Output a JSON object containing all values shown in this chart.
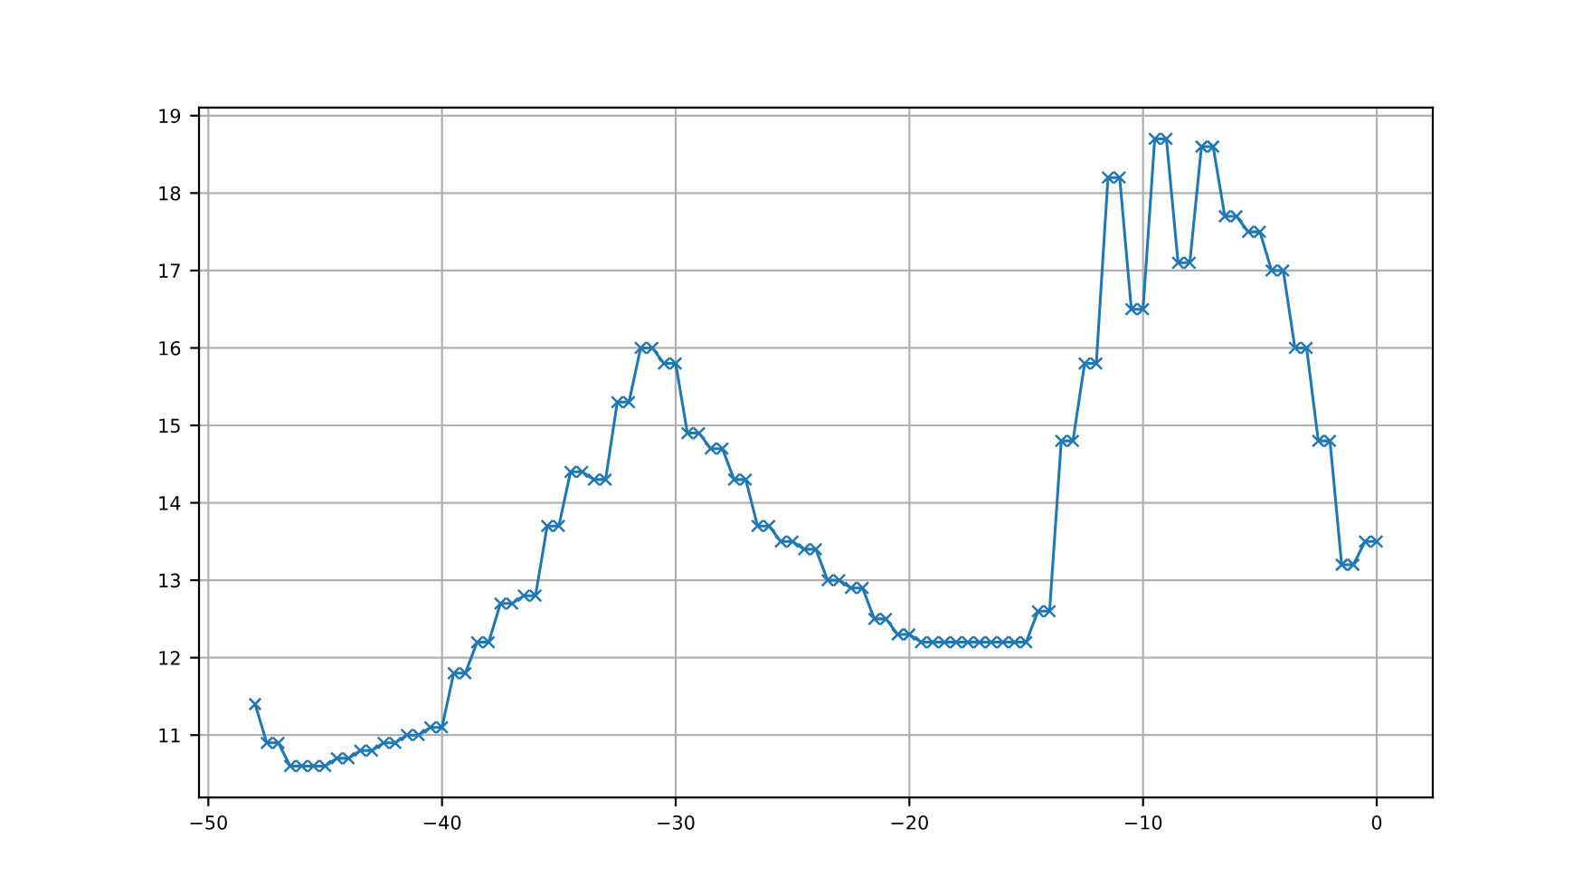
{
  "chart_data": {
    "type": "line",
    "x": [
      -48,
      -47.5,
      -47,
      -46.5,
      -46,
      -45.5,
      -45,
      -44.5,
      -44,
      -43.5,
      -43,
      -42.5,
      -42,
      -41.5,
      -41,
      -40.5,
      -40,
      -39.5,
      -39,
      -38.5,
      -38,
      -37.5,
      -37,
      -36.5,
      -36,
      -35.5,
      -35,
      -34.5,
      -34,
      -33.5,
      -33,
      -32.5,
      -32,
      -31.5,
      -31,
      -30.5,
      -30,
      -29.5,
      -29,
      -28.5,
      -28,
      -27.5,
      -27,
      -26.5,
      -26,
      -25.5,
      -25,
      -24.5,
      -24,
      -23.5,
      -23,
      -22.5,
      -22,
      -21.5,
      -21,
      -20.5,
      -20,
      -19.5,
      -19,
      -18.5,
      -18,
      -17.5,
      -17,
      -16.5,
      -16,
      -15.5,
      -15,
      -14.5,
      -14,
      -13.5,
      -13,
      -12.5,
      -12,
      -11.5,
      -11,
      -10.5,
      -10,
      -9.5,
      -9,
      -8.5,
      -8,
      -7.5,
      -7,
      -6.5,
      -6,
      -5.5,
      -5,
      -4.5,
      -4,
      -3.5,
      -3,
      -2.5,
      -2,
      -1.5,
      -1,
      -0.5,
      0
    ],
    "series": [
      {
        "color": "#1f77b4",
        "values": [
          11.4,
          10.9,
          10.9,
          10.6,
          10.6,
          10.6,
          10.6,
          10.7,
          10.7,
          10.8,
          10.8,
          10.9,
          10.9,
          11.0,
          11.0,
          11.1,
          11.1,
          11.8,
          11.8,
          12.2,
          12.2,
          12.7,
          12.7,
          12.8,
          12.8,
          13.7,
          13.7,
          14.4,
          14.4,
          14.3,
          14.3,
          15.3,
          15.3,
          16.0,
          16.0,
          15.8,
          15.8,
          14.9,
          14.9,
          14.7,
          14.7,
          14.3,
          14.3,
          13.7,
          13.7,
          13.5,
          13.5,
          13.4,
          13.4,
          13.0,
          13.0,
          12.9,
          12.9,
          12.5,
          12.5,
          12.3,
          12.3,
          12.2,
          12.2,
          12.2,
          12.2,
          12.2,
          12.2,
          12.2,
          12.2,
          12.2,
          12.2,
          12.6,
          12.6,
          14.8,
          14.8,
          15.8,
          15.8,
          18.2,
          18.2,
          16.5,
          16.5,
          18.7,
          18.7,
          17.1,
          17.1,
          18.6,
          18.6,
          17.7,
          17.7,
          17.5,
          17.5,
          17.0,
          17.0,
          16.0,
          16.0,
          14.8,
          14.8,
          13.2,
          13.2,
          13.5,
          13.5
        ]
      }
    ],
    "xlim": [
      -50.4,
      2.4
    ],
    "ylim": [
      10.195,
      19.105
    ],
    "xticks": [
      {
        "value": -50,
        "label": "−50"
      },
      {
        "value": -40,
        "label": "−40"
      },
      {
        "value": -30,
        "label": "−30"
      },
      {
        "value": -20,
        "label": "−20"
      },
      {
        "value": -10,
        "label": "−10"
      },
      0
    ],
    "yticks": [
      11,
      12,
      13,
      14,
      15,
      16,
      17,
      18,
      19
    ],
    "grid": true,
    "marker": "cross",
    "line_style": "solid"
  }
}
